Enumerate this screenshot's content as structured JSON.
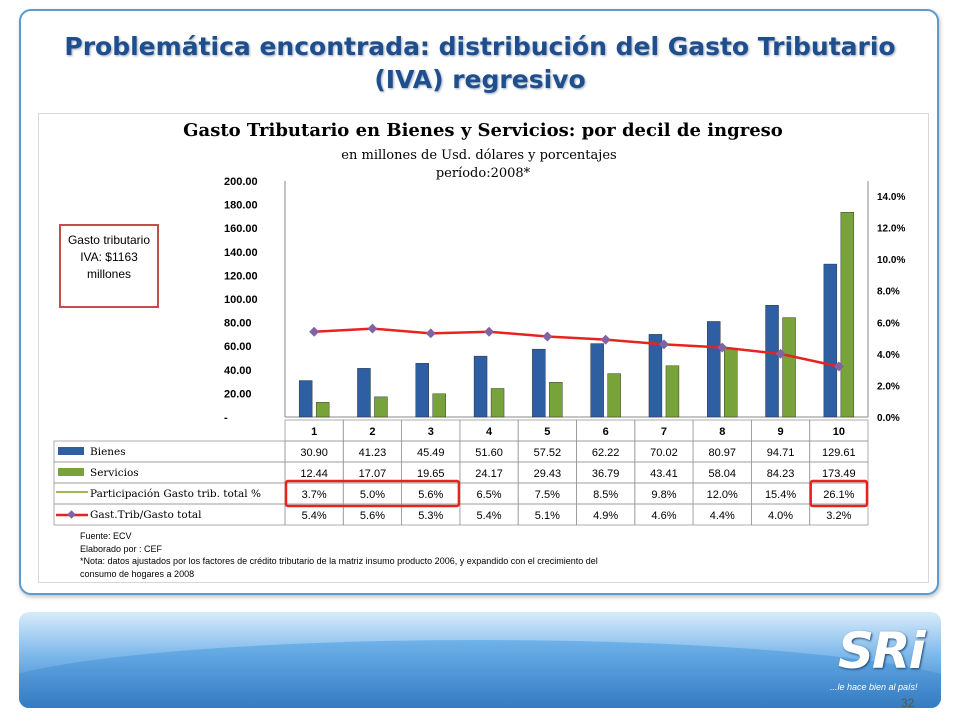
{
  "slide": {
    "title": "Problemática encontrada: distribución del Gasto Tributario (IVA) regresivo",
    "page_number": "32"
  },
  "callout": {
    "text": "Gasto tributario IVA:  $1163 millones"
  },
  "notes": {
    "line1": "Fuente: ECV",
    "line2": "Elaborado por : CEF",
    "line3": "*Nota: datos ajustados por los factores de crédito tributario de la matriz insumo producto 2006, y expandido con el crecimiento del",
    "line4": "consumo de hogares a 2008"
  },
  "footer": {
    "logo": "SRi",
    "tagline": "...le hace bien al país!"
  },
  "chart_data": {
    "type": "bar",
    "title": "Gasto Tributario en Bienes y Servicios: por decil de ingreso",
    "subtitle1": "en millones de Usd. dólares y porcentajes",
    "subtitle2": "período:2008*",
    "categories": [
      "1",
      "2",
      "3",
      "4",
      "5",
      "6",
      "7",
      "8",
      "9",
      "10"
    ],
    "ylim": [
      0,
      200
    ],
    "y2lim": [
      0,
      0.14
    ],
    "y_ticks": [
      "200.00",
      "180.00",
      "160.00",
      "140.00",
      "120.00",
      "100.00",
      "80.00",
      "60.00",
      "40.00",
      "20.00",
      "-"
    ],
    "y2_ticks": [
      "14.0%",
      "12.0%",
      "10.0%",
      "8.0%",
      "6.0%",
      "4.0%",
      "2.0%",
      "0.0%"
    ],
    "grid": false,
    "series": [
      {
        "name": "Bienes",
        "type": "bar",
        "color": "#2e5fa3",
        "values": [
          30.9,
          41.23,
          45.49,
          51.6,
          57.52,
          62.22,
          70.02,
          80.97,
          94.71,
          129.61
        ],
        "labels": [
          "30.90",
          "41.23",
          "45.49",
          "51.60",
          "57.52",
          "62.22",
          "70.02",
          "80.97",
          "94.71",
          "129.61"
        ]
      },
      {
        "name": "Servicios",
        "type": "bar",
        "color": "#77a33a",
        "values": [
          12.44,
          17.07,
          19.65,
          24.17,
          29.43,
          36.79,
          43.41,
          58.04,
          84.23,
          173.49
        ],
        "labels": [
          "12.44",
          "17.07",
          "19.65",
          "24.17",
          "29.43",
          "36.79",
          "43.41",
          "58.04",
          "84.23",
          "173.49"
        ]
      },
      {
        "name": "Participación Gasto trib. total %",
        "type": "table-only",
        "color": "#9bbb59",
        "values": [
          0.037,
          0.05,
          0.056,
          0.065,
          0.075,
          0.085,
          0.098,
          0.12,
          0.154,
          0.261
        ],
        "labels": [
          "3.7%",
          "5.0%",
          "5.6%",
          "6.5%",
          "7.5%",
          "8.5%",
          "9.8%",
          "12.0%",
          "15.4%",
          "26.1%"
        ]
      },
      {
        "name": "Gast.Trib/Gasto total",
        "type": "line",
        "color": "#e8231f",
        "marker_color": "#8064a2",
        "values": [
          0.054,
          0.056,
          0.053,
          0.054,
          0.051,
          0.049,
          0.046,
          0.044,
          0.04,
          0.032
        ],
        "labels": [
          "5.4%",
          "5.6%",
          "5.3%",
          "5.4%",
          "5.1%",
          "4.9%",
          "4.6%",
          "4.4%",
          "4.0%",
          "3.2%"
        ]
      }
    ],
    "highlight_color": "#e8231f"
  }
}
